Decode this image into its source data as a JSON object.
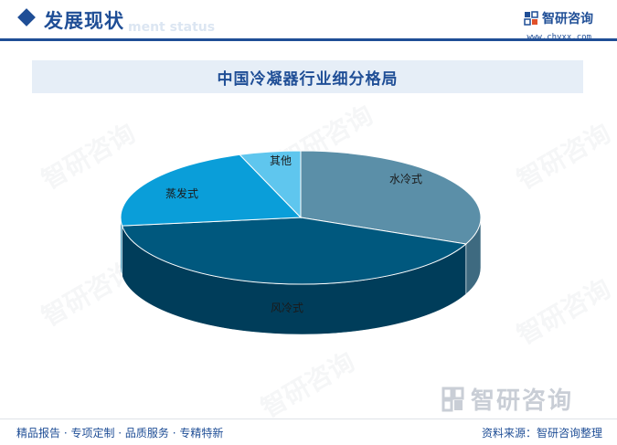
{
  "header": {
    "title": "发展现状",
    "subtitle": "ment status",
    "brand_name": "智研咨询",
    "brand_url": "www.chyxx.com"
  },
  "chart_data": {
    "type": "pie",
    "title": "中国冷凝器行业细分格局",
    "style": "3d",
    "categories": [
      "水冷式",
      "风冷式",
      "蒸发式",
      "其他"
    ],
    "values": [
      31.5,
      41.5,
      21.5,
      5.5
    ],
    "colors": [
      "#5b8fa8",
      "#00587e",
      "#0a9ed9",
      "#5fc6ee"
    ],
    "side_colors": [
      "#3e6a80",
      "#003d5a",
      "#06739f",
      "#3f9fc2"
    ]
  },
  "footer": {
    "brand_name": "智研咨询",
    "tagline": "精品报告 · 专项定制 · 品质服务 · 专精特新",
    "source": "资料来源：智研咨询整理"
  }
}
